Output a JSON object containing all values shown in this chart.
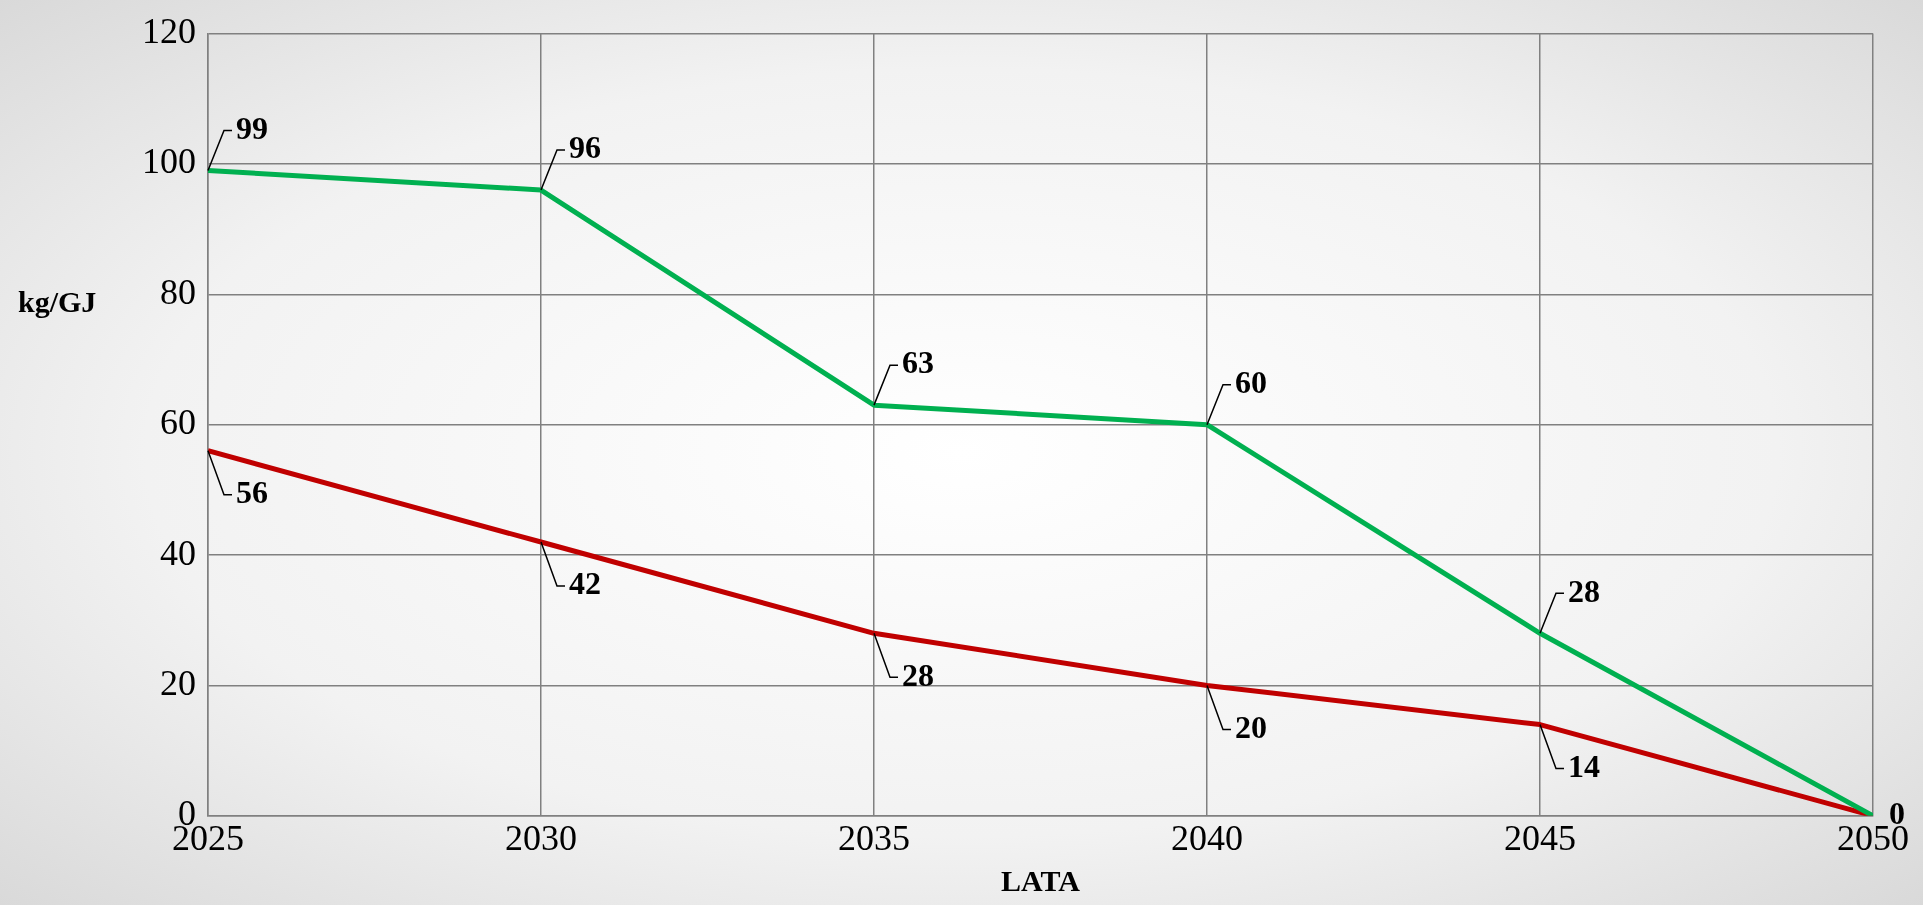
{
  "chart_data": {
    "type": "line",
    "xlabel": "LATA",
    "ylabel": "kg/GJ",
    "x": [
      2025,
      2030,
      2035,
      2040,
      2045,
      2050
    ],
    "xlim": [
      2025,
      2050
    ],
    "xticks": [
      2025,
      2030,
      2035,
      2040,
      2045,
      2050
    ],
    "ylim": [
      0,
      120
    ],
    "yticks": [
      0,
      20,
      40,
      60,
      80,
      100,
      120
    ],
    "grid": true,
    "legend": false,
    "marker": "none",
    "line_style": "solid",
    "series": [
      {
        "color": "#00b050",
        "values": [
          99,
          96,
          63,
          60,
          28,
          0
        ],
        "value_labels": [
          "99",
          "96",
          "63",
          "60",
          "28",
          "0"
        ]
      },
      {
        "color": "#c00000",
        "values": [
          56,
          42,
          28,
          20,
          14,
          0
        ],
        "value_labels": [
          "56",
          "42",
          "28",
          "20",
          "14",
          null
        ]
      }
    ]
  }
}
